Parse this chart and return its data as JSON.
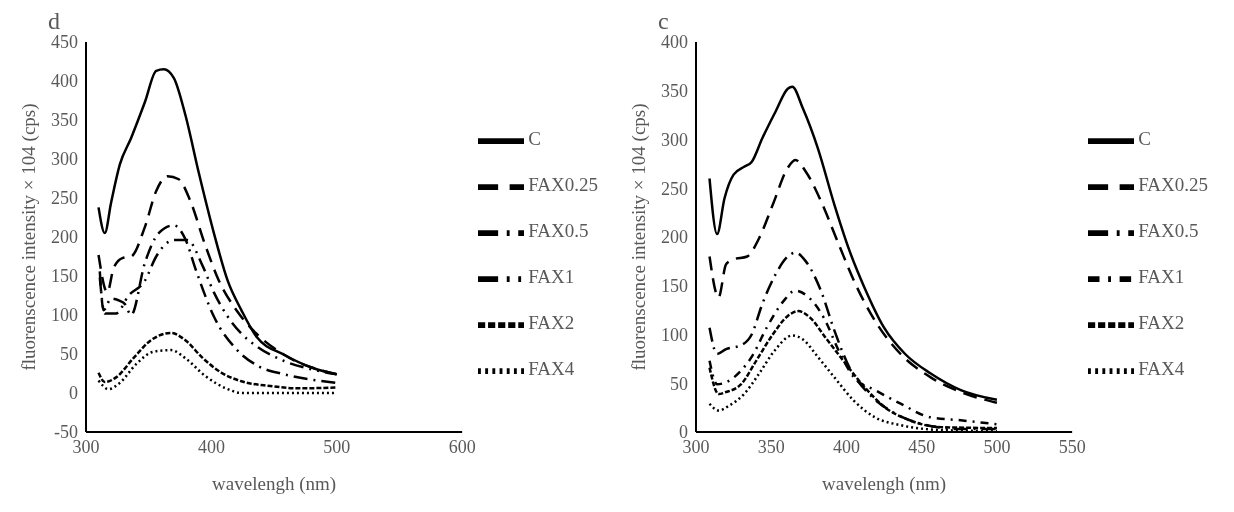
{
  "chart_data": [
    {
      "type": "line",
      "title": "d",
      "xlabel": "wavelengh (nm)",
      "ylabel": "fluorenscence intensity × 104 (cps)",
      "xlim": [
        300,
        600
      ],
      "xticks": [
        300,
        400,
        500,
        600
      ],
      "ylim": [
        -50,
        450
      ],
      "yticks": [
        -50,
        0,
        50,
        100,
        150,
        200,
        250,
        300,
        350,
        400,
        450
      ],
      "grid": false,
      "legend": "right",
      "marker": "none",
      "series": [
        {
          "name": "C",
          "color": "#000000",
          "line_style": "solid",
          "x": [
            310,
            315,
            320,
            327,
            336,
            347,
            356,
            362,
            370,
            379,
            390,
            402,
            413,
            424,
            436,
            458,
            481,
            500
          ],
          "values": [
            238,
            205,
            244,
            293,
            327,
            373,
            413,
            415,
            404,
            358,
            282,
            205,
            144,
            106,
            72,
            49,
            32,
            24
          ]
        },
        {
          "name": "FAX0.25",
          "color": "#000000",
          "line_style": "longdash",
          "x": [
            310,
            317,
            322,
            329,
            336,
            347,
            356,
            365,
            374,
            383,
            395,
            406,
            420,
            436,
            458,
            500
          ],
          "values": [
            177,
            129,
            160,
            173,
            175,
            213,
            259,
            278,
            274,
            247,
            190,
            144,
            106,
            76,
            49,
            24
          ]
        },
        {
          "name": "FAX0.5",
          "color": "#000000",
          "line_style": "dashdot",
          "x": [
            311,
            314,
            320,
            327,
            331,
            336,
            347,
            358,
            370,
            379,
            388,
            402,
            420,
            438,
            458,
            500
          ],
          "values": [
            156,
            106,
            121,
            118,
            114,
            100,
            167,
            205,
            215,
            198,
            156,
            98,
            56,
            34,
            24,
            13
          ]
        },
        {
          "name": "FAX1",
          "color": "#000000",
          "line_style": "dashdotdot",
          "x": [
            311,
            315,
            324,
            334,
            347,
            356,
            370,
            381,
            393,
            402,
            413,
            424,
            436,
            458,
            481,
            500
          ],
          "values": [
            148,
            102,
            102,
            125,
            144,
            175,
            196,
            196,
            163,
            129,
            98,
            76,
            60,
            41,
            30,
            24
          ]
        },
        {
          "name": "FAX2",
          "color": "#000000",
          "line_style": "dashed",
          "x": [
            310,
            315,
            324,
            338,
            352,
            368,
            379,
            393,
            408,
            424,
            447,
            470,
            500
          ],
          "values": [
            26,
            14,
            20,
            45,
            68,
            77,
            68,
            45,
            26,
            15,
            9,
            6,
            7
          ]
        },
        {
          "name": "FAX4",
          "color": "#000000",
          "line_style": "dotted",
          "x": [
            310,
            318,
            327,
            340,
            354,
            368,
            379,
            395,
            413,
            424,
            500
          ],
          "values": [
            16,
            5,
            13,
            37,
            53,
            55,
            45,
            22,
            5,
            0,
            0
          ]
        }
      ]
    },
    {
      "type": "line",
      "title": "c",
      "xlabel": "wavelengh (nm)",
      "ylabel": "fluorenscence intensity × 104 (cps)",
      "xlim": [
        300,
        550
      ],
      "xticks": [
        300,
        350,
        400,
        450,
        500,
        550
      ],
      "ylim": [
        0,
        400
      ],
      "yticks": [
        0,
        50,
        100,
        150,
        200,
        250,
        300,
        350,
        400
      ],
      "grid": false,
      "legend": "right",
      "marker": "none",
      "series": [
        {
          "name": "C",
          "color": "#000000",
          "line_style": "solid",
          "x": [
            309,
            314,
            319,
            325,
            332,
            337,
            344,
            353,
            361,
            364,
            371,
            381,
            392,
            402,
            412,
            425,
            439,
            456,
            476,
            500
          ],
          "values": [
            260,
            203,
            240,
            264,
            272,
            277,
            301,
            329,
            352,
            354,
            332,
            291,
            233,
            186,
            148,
            107,
            80,
            60,
            43,
            33
          ]
        },
        {
          "name": "FAX0.25",
          "color": "#000000",
          "line_style": "longdash",
          "x": [
            309,
            315,
            320,
            325,
            334,
            342,
            351,
            361,
            366,
            373,
            383,
            395,
            405,
            419,
            436,
            456,
            476,
            500
          ],
          "values": [
            180,
            138,
            172,
            177,
            180,
            199,
            233,
            271,
            279,
            267,
            237,
            192,
            155,
            114,
            80,
            56,
            41,
            30
          ]
        },
        {
          "name": "FAX0.5",
          "color": "#000000",
          "line_style": "dashdot",
          "x": [
            309,
            314,
            320,
            330,
            337,
            344,
            353,
            361,
            366,
            373,
            383,
            392,
            402,
            415,
            429,
            446,
            476,
            500
          ],
          "values": [
            107,
            80,
            85,
            89,
            100,
            131,
            162,
            180,
            184,
            175,
            145,
            104,
            66,
            39,
            22,
            10,
            3,
            3
          ]
        },
        {
          "name": "FAX1",
          "color": "#000000",
          "line_style": "shortdashdot",
          "x": [
            309,
            314,
            320,
            330,
            337,
            347,
            358,
            366,
            375,
            385,
            395,
            405,
            419,
            436,
            456,
            476,
            500
          ],
          "values": [
            73,
            49,
            51,
            63,
            77,
            107,
            134,
            145,
            138,
            117,
            83,
            56,
            43,
            29,
            15,
            12,
            8
          ]
        },
        {
          "name": "FAX2",
          "color": "#000000",
          "line_style": "dashed",
          "x": [
            309,
            315,
            320,
            330,
            340,
            351,
            361,
            368,
            376,
            386,
            398,
            412,
            425,
            442,
            463,
            500
          ],
          "values": [
            66,
            39,
            41,
            49,
            73,
            100,
            119,
            124,
            117,
            97,
            73,
            46,
            26,
            12,
            5,
            4
          ]
        },
        {
          "name": "FAX4",
          "color": "#000000",
          "line_style": "dotted",
          "x": [
            309,
            315,
            322,
            332,
            342,
            352,
            364,
            371,
            381,
            392,
            405,
            419,
            436,
            463,
            500
          ],
          "values": [
            29,
            22,
            27,
            39,
            60,
            83,
            99,
            95,
            77,
            56,
            32,
            15,
            7,
            2,
            1
          ]
        }
      ]
    }
  ]
}
